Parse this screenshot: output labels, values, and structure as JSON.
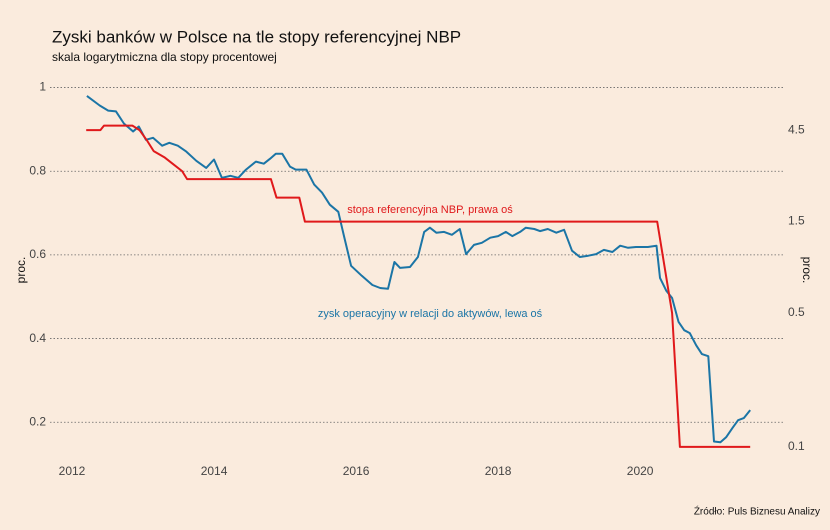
{
  "chart_data": {
    "type": "line",
    "title": "Zyski banków w Polsce na tle stopy referencyjnej NBP",
    "subtitle": "skala logarytmiczna dla stopy procentowej",
    "y_label": "proc.",
    "y2_label": "proc.",
    "source": "Źródło: Puls Biznesu Analizy",
    "annotations": [
      "stopa referencyjna NBP, prawa oś",
      "zysk operacyjny w relacji do aktywów, lewa oś"
    ],
    "xlim": [
      2011.69,
      2022.04
    ],
    "xticks": [
      2012,
      2014,
      2016,
      2018,
      2020
    ],
    "ylim": [
      0.105,
      1.03
    ],
    "yticks": [
      0.2,
      0.4,
      0.6,
      0.8,
      1
    ],
    "y2lim": [
      0.0834,
      8.73
    ],
    "y2ticks": [
      0.1,
      0.5,
      1.5,
      4.5
    ],
    "y2_log": true,
    "grid": true,
    "series": [
      {
        "name": "zysk operacyjny w relacji do aktywów",
        "color": "#1b75a6",
        "axis": "y",
        "x": [
          2012.21,
          2012.39,
          2012.51,
          2012.62,
          2012.73,
          2012.86,
          2012.94,
          2013.04,
          2013.14,
          2013.27,
          2013.37,
          2013.49,
          2013.61,
          2013.75,
          2013.89,
          2014.0,
          2014.11,
          2014.23,
          2014.34,
          2014.45,
          2014.59,
          2014.7,
          2014.79,
          2014.87,
          2014.96,
          2015.07,
          2015.15,
          2015.3,
          2015.41,
          2015.52,
          2015.63,
          2015.75,
          2015.83,
          2015.93,
          2016.08,
          2016.23,
          2016.34,
          2016.45,
          2016.54,
          2016.62,
          2016.76,
          2016.87,
          2016.96,
          2017.04,
          2017.13,
          2017.24,
          2017.35,
          2017.46,
          2017.55,
          2017.66,
          2017.77,
          2017.89,
          2018.0,
          2018.11,
          2018.2,
          2018.31,
          2018.39,
          2018.51,
          2018.59,
          2018.7,
          2018.82,
          2018.93,
          2019.04,
          2019.15,
          2019.27,
          2019.38,
          2019.49,
          2019.61,
          2019.72,
          2019.83,
          2019.94,
          2020.11,
          2020.23,
          2020.28,
          2020.37,
          2020.45,
          2020.54,
          2020.62,
          2020.7,
          2020.79,
          2020.87,
          2020.96,
          2021.04,
          2021.13,
          2021.21,
          2021.3,
          2021.38,
          2021.46,
          2021.55
        ],
        "values": [
          0.98,
          0.957,
          0.945,
          0.943,
          0.914,
          0.895,
          0.907,
          0.875,
          0.88,
          0.861,
          0.868,
          0.861,
          0.847,
          0.825,
          0.808,
          0.828,
          0.784,
          0.789,
          0.784,
          0.804,
          0.823,
          0.818,
          0.83,
          0.842,
          0.842,
          0.811,
          0.804,
          0.804,
          0.768,
          0.749,
          0.72,
          0.703,
          0.645,
          0.574,
          0.55,
          0.528,
          0.521,
          0.519,
          0.583,
          0.569,
          0.571,
          0.595,
          0.655,
          0.665,
          0.653,
          0.655,
          0.648,
          0.662,
          0.602,
          0.624,
          0.629,
          0.641,
          0.645,
          0.655,
          0.645,
          0.655,
          0.665,
          0.662,
          0.657,
          0.662,
          0.653,
          0.66,
          0.61,
          0.595,
          0.598,
          0.602,
          0.612,
          0.607,
          0.622,
          0.617,
          0.619,
          0.619,
          0.622,
          0.545,
          0.514,
          0.497,
          0.44,
          0.42,
          0.413,
          0.384,
          0.363,
          0.358,
          0.154,
          0.152,
          0.164,
          0.186,
          0.205,
          0.21,
          0.229
        ]
      },
      {
        "name": "stopa referencyjna NBP",
        "color": "#e0191b",
        "axis": "y2",
        "x": [
          2012.2,
          2012.4,
          2012.45,
          2012.85,
          2012.95,
          2013.05,
          2013.15,
          2013.3,
          2013.42,
          2013.55,
          2013.62,
          2014.8,
          2014.88,
          2015.2,
          2015.28,
          2020.24,
          2020.45,
          2020.56,
          2021.55
        ],
        "values": [
          4.5,
          4.5,
          4.75,
          4.75,
          4.5,
          4.0,
          3.5,
          3.25,
          3.0,
          2.75,
          2.5,
          2.5,
          2.0,
          2.0,
          1.5,
          1.5,
          0.5,
          0.1,
          0.1
        ]
      }
    ]
  }
}
